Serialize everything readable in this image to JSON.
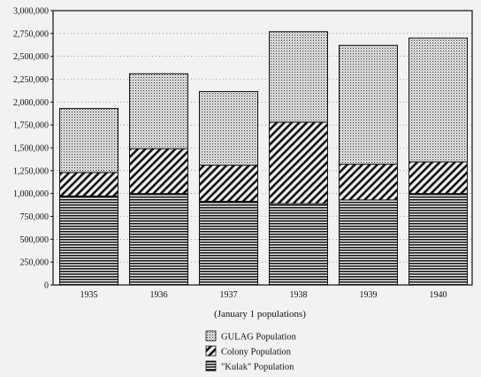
{
  "chart_data": {
    "type": "bar",
    "stacked": true,
    "categories": [
      "1935",
      "1936",
      "1937",
      "1938",
      "1939",
      "1940"
    ],
    "series": [
      {
        "name": "\"Kulak\" Population",
        "values": [
          973000,
          1000000,
          915000,
          890000,
          930000,
          1000000
        ],
        "pattern": "horizontal-lines"
      },
      {
        "name": "Colony Population",
        "values": [
          257000,
          490000,
          395000,
          890000,
          390000,
          345000
        ],
        "pattern": "diagonal-hatch"
      },
      {
        "name": "GULAG Population",
        "values": [
          700000,
          820000,
          805000,
          990000,
          1300000,
          1355000
        ],
        "pattern": "dots"
      }
    ],
    "legend_order": [
      "GULAG Population",
      "Colony Population",
      "\"Kulak\" Population"
    ],
    "y_ticks": [
      "0",
      "250,000",
      "500,000",
      "750,000",
      "1,000,000",
      "1,250,000",
      "1,500,000",
      "1,750,000",
      "2,000,000",
      "2,250,000",
      "2,500,000",
      "2,750,000",
      "3,000,000"
    ],
    "ylim": [
      0,
      3000000
    ],
    "xlabel": "(January 1 populations)",
    "ylabel": "",
    "title": "",
    "grid": "dotted horizontal",
    "legend_position": "bottom-center"
  }
}
